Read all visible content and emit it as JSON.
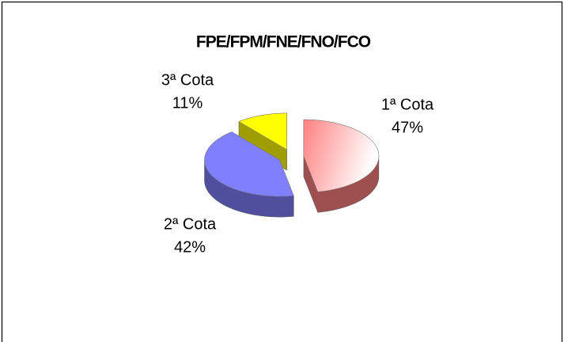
{
  "chart_data": {
    "type": "pie",
    "title": "FPE/FPM/FNE/FNO/FCO",
    "categories": [
      "1ª Cota",
      "2ª Cota",
      "3ª Cota"
    ],
    "values": [
      47,
      42,
      11
    ],
    "value_labels": [
      "47%",
      "42%",
      "11%"
    ],
    "colors": [
      "#ff8080",
      "#8080ff",
      "#ffff00"
    ]
  }
}
